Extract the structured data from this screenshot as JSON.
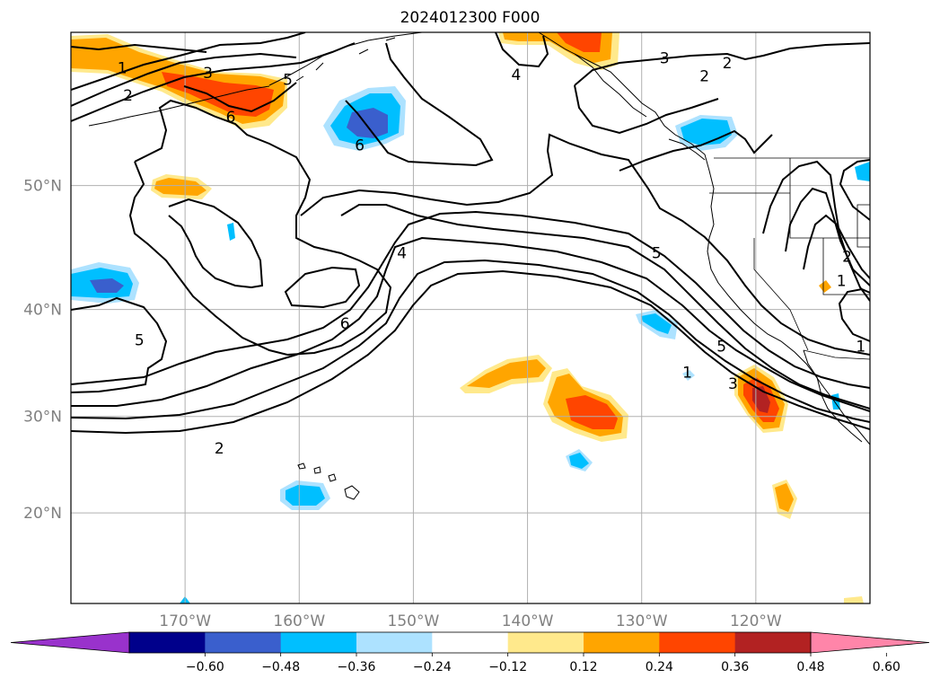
{
  "title": "2024012300 F000",
  "lat_labels": [
    {
      "lat": 50,
      "text": "50°N"
    },
    {
      "lat": 40,
      "text": "40°N"
    },
    {
      "lat": 30,
      "text": "30°N"
    },
    {
      "lat": 20,
      "text": "20°N"
    }
  ],
  "lon_labels": [
    {
      "lon": -170,
      "text": "170°W"
    },
    {
      "lon": -160,
      "text": "160°W"
    },
    {
      "lon": -150,
      "text": "150°W"
    },
    {
      "lon": -140,
      "text": "140°W"
    },
    {
      "lon": -130,
      "text": "130°W"
    },
    {
      "lon": -120,
      "text": "120°W"
    }
  ],
  "map_extent": {
    "lon_min": -180,
    "lon_max": -110,
    "lat_min": 10,
    "lat_max": 60
  },
  "colorbar": {
    "boundaries": [
      -0.72,
      -0.6,
      -0.48,
      -0.36,
      -0.24,
      -0.12,
      0.12,
      0.24,
      0.36,
      0.48,
      0.6,
      0.72
    ],
    "colors": [
      "#9932CC",
      "#00008B",
      "#3A5FCD",
      "#00BFFF",
      "#ADE2FF",
      "#FFFFFF",
      "#FFE98C",
      "#FFA500",
      "#FF4500",
      "#B22222",
      "#FF85A9"
    ],
    "tick_labels": [
      "−0.60",
      "−0.48",
      "−0.36",
      "−0.24",
      "−0.12",
      "0.12",
      "0.24",
      "0.36",
      "0.48",
      "0.60"
    ]
  },
  "contour_labels": [
    {
      "text": "1",
      "lon": -175.5,
      "lat": 57.9
    },
    {
      "text": "2",
      "lon": -175.0,
      "lat": 56.2
    },
    {
      "text": "3",
      "lon": -168.0,
      "lat": 57.6
    },
    {
      "text": "5",
      "lon": -161.0,
      "lat": 57.2
    },
    {
      "text": "6",
      "lon": -166.0,
      "lat": 54.8
    },
    {
      "text": "6",
      "lon": -154.7,
      "lat": 52.9
    },
    {
      "text": "4",
      "lon": -141.0,
      "lat": 57.5
    },
    {
      "text": "3",
      "lon": -128.0,
      "lat": 58.5
    },
    {
      "text": "2",
      "lon": -124.5,
      "lat": 57.4
    },
    {
      "text": "2",
      "lon": -122.5,
      "lat": 58.2
    },
    {
      "text": "4",
      "lon": -151.0,
      "lat": 44.8
    },
    {
      "text": "6",
      "lon": -156.0,
      "lat": 38.8
    },
    {
      "text": "5",
      "lon": -174.0,
      "lat": 37.3
    },
    {
      "text": "2",
      "lon": -167.0,
      "lat": 26.8
    },
    {
      "text": "5",
      "lon": -128.7,
      "lat": 44.8
    },
    {
      "text": "5",
      "lon": -123.0,
      "lat": 36.7
    },
    {
      "text": "1",
      "lon": -126.0,
      "lat": 34.3
    },
    {
      "text": "3",
      "lon": -122.0,
      "lat": 33.2
    },
    {
      "text": "2",
      "lon": -112.0,
      "lat": 44.5
    },
    {
      "text": "1",
      "lon": -112.5,
      "lat": 42.5
    },
    {
      "text": "1",
      "lon": -110.8,
      "lat": 36.7
    }
  ]
}
